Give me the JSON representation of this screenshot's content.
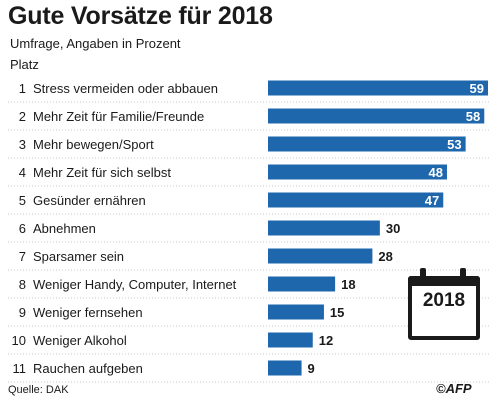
{
  "header": {
    "title": "Gute Vorsätze für 2018",
    "subtitle": "Umfrage, Angaben in Prozent",
    "rank_header": "Platz"
  },
  "calendar_label": "2018",
  "source": "Quelle: DAK",
  "logo": "©AFP",
  "colors": {
    "bar": "#1e67ad",
    "bar_dark": "#16538d",
    "text": "#1a1a1a",
    "rule": "#999999"
  },
  "chart_data": {
    "type": "bar",
    "orientation": "horizontal",
    "title": "Gute Vorsätze für 2018",
    "subtitle": "Umfrage, Angaben in Prozent",
    "ranks": [
      "1",
      "2",
      "3",
      "4",
      "5",
      "6",
      "7",
      "8",
      "9",
      "10",
      "11"
    ],
    "categories": [
      "Stress vermeiden oder abbauen",
      "Mehr Zeit für Familie/Freunde",
      "Mehr bewegen/Sport",
      "Mehr Zeit für sich selbst",
      "Gesünder ernähren",
      "Abnehmen",
      "Sparsamer sein",
      "Weniger Handy, Computer, Internet",
      "Weniger fernsehen",
      "Weniger Alkohol",
      "Rauchen aufgeben"
    ],
    "values": [
      59,
      58,
      53,
      48,
      47,
      30,
      28,
      18,
      15,
      12,
      9
    ],
    "xlim": [
      0,
      59
    ]
  }
}
